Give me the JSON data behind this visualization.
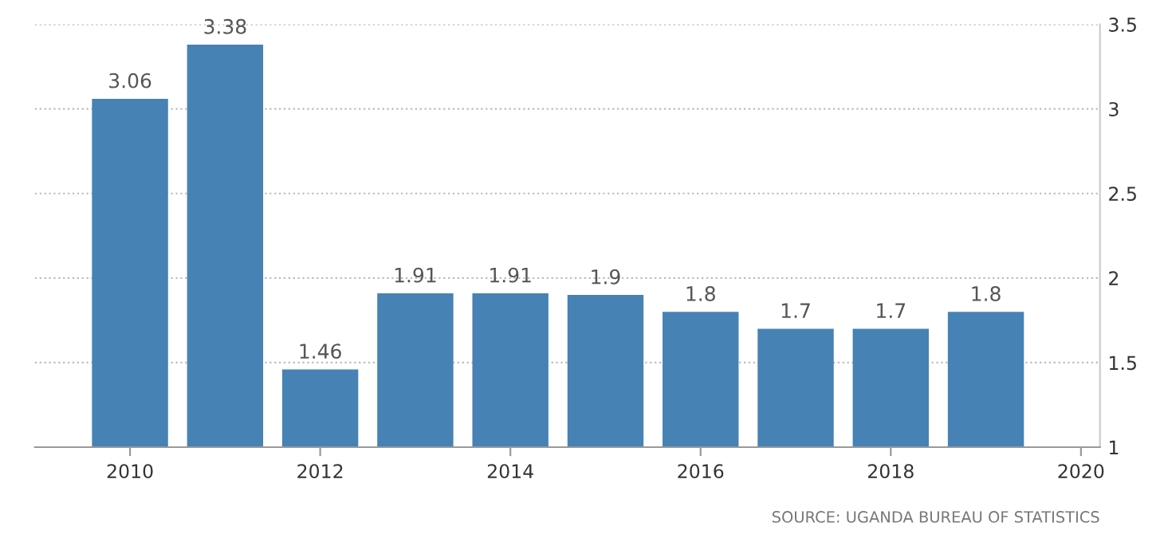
{
  "chart_data": {
    "type": "bar",
    "x": [
      2010,
      2011,
      2012,
      2013,
      2014,
      2015,
      2016,
      2017,
      2018,
      2019
    ],
    "values": [
      3.06,
      3.38,
      1.46,
      1.91,
      1.91,
      1.9,
      1.8,
      1.7,
      1.7,
      1.8
    ],
    "color": "#4682b4",
    "data_labels": true,
    "xlim": [
      2009.0,
      2020.2
    ],
    "xticks": [
      2010,
      2012,
      2014,
      2016,
      2018,
      2020
    ],
    "ylim": [
      1,
      3.5
    ],
    "yticks": [
      1,
      1.5,
      2,
      2.5,
      3,
      3.5
    ],
    "grid": "y",
    "legend": false,
    "annotations": [
      "SOURCE: UGANDA BUREAU OF STATISTICS"
    ]
  }
}
